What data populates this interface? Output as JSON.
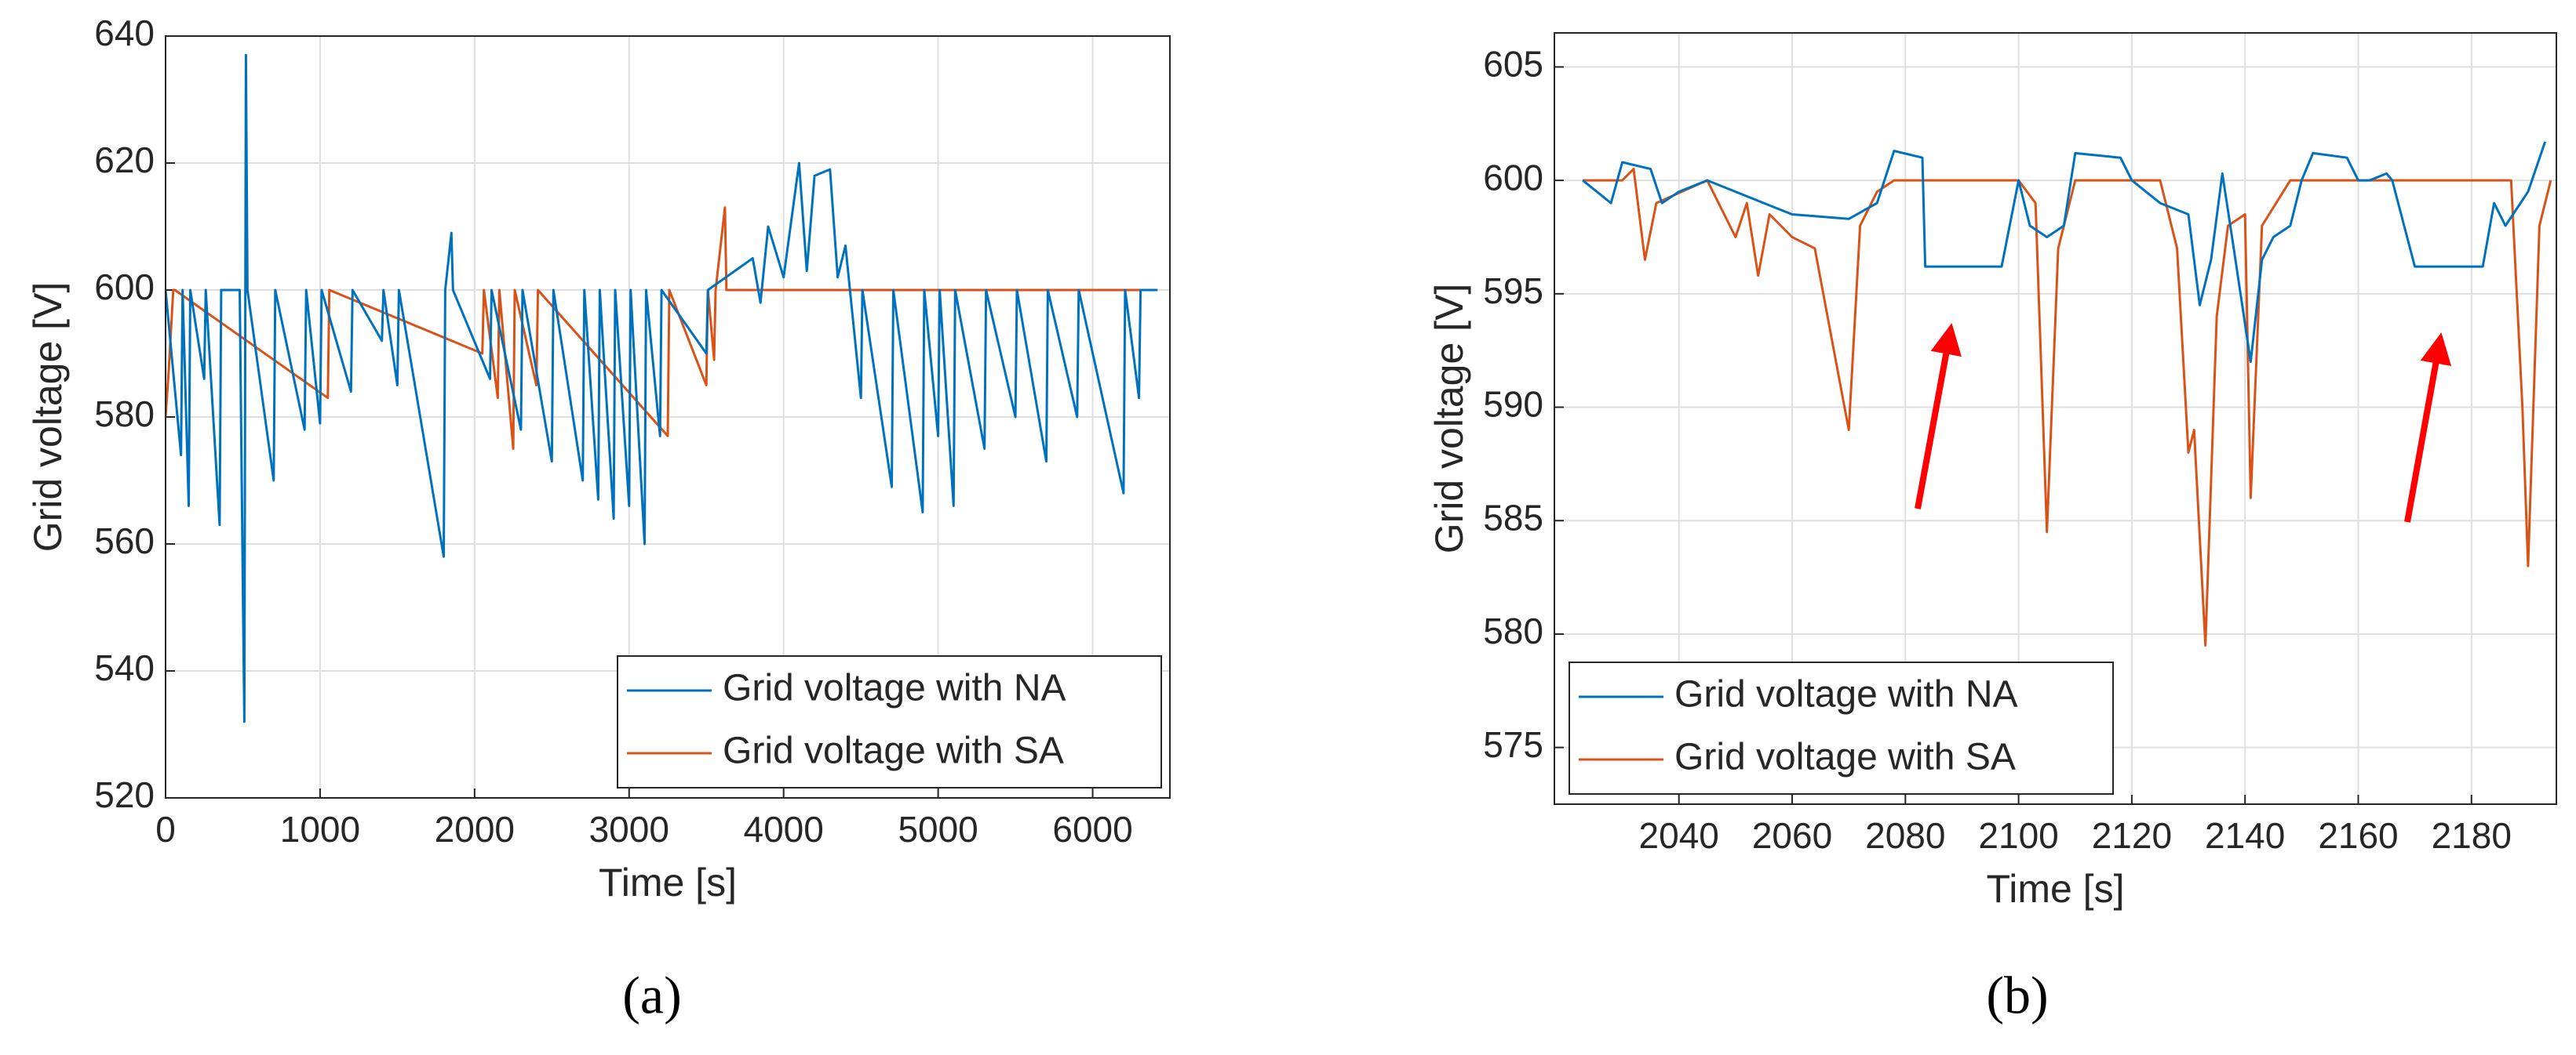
{
  "chart_data": [
    {
      "type": "line",
      "caption": "(a)",
      "xlabel": "Time [s]",
      "ylabel": "Grid voltage [V]",
      "xlim": [
        0,
        6500
      ],
      "ylim": [
        520,
        640
      ],
      "xticks": [
        0,
        1000,
        2000,
        3000,
        4000,
        5000,
        6000
      ],
      "yticks": [
        520,
        540,
        560,
        580,
        600,
        620,
        640
      ],
      "grid": true,
      "legend": "lower right",
      "series": [
        {
          "name": "Grid voltage with NA",
          "color": "#0072bd",
          "x": [
            0,
            100,
            110,
            150,
            160,
            250,
            260,
            350,
            360,
            480,
            500,
            510,
            520,
            530,
            700,
            710,
            900,
            910,
            1000,
            1010,
            1200,
            1210,
            1400,
            1410,
            1500,
            1510,
            1800,
            1810,
            1850,
            1860,
            2100,
            2110,
            2300,
            2310,
            2500,
            2510,
            2700,
            2710,
            2800,
            2810,
            2900,
            2910,
            3000,
            3010,
            3100,
            3110,
            3200,
            3210,
            3500,
            3510,
            3800,
            3850,
            3900,
            4000,
            4100,
            4150,
            4200,
            4300,
            4350,
            4400,
            4500,
            4510,
            4700,
            4710,
            4900,
            4910,
            5000,
            5010,
            5100,
            5110,
            5300,
            5310,
            5500,
            5510,
            5700,
            5710,
            5900,
            5910,
            6200,
            6210,
            6300,
            6310,
            6420
          ],
          "values": [
            600,
            574,
            600,
            566,
            600,
            586,
            600,
            563,
            600,
            600,
            553,
            532,
            637,
            600,
            570,
            600,
            578,
            600,
            579,
            600,
            584,
            600,
            592,
            600,
            585,
            600,
            558,
            600,
            609,
            600,
            586,
            600,
            578,
            600,
            573,
            600,
            570,
            600,
            567,
            600,
            564,
            600,
            566,
            600,
            560,
            600,
            577,
            600,
            590,
            600,
            605,
            598,
            610,
            602,
            620,
            603,
            618,
            619,
            602,
            607,
            583,
            600,
            569,
            600,
            565,
            600,
            577,
            600,
            566,
            600,
            575,
            600,
            580,
            600,
            573,
            600,
            580,
            600,
            568,
            600,
            583,
            600,
            600
          ]
        },
        {
          "name": "Grid voltage with SA",
          "color": "#d95319",
          "x": [
            0,
            20,
            50,
            60,
            1050,
            1060,
            2050,
            2060,
            2150,
            2160,
            2250,
            2260,
            2400,
            2410,
            3250,
            3260,
            3500,
            3510,
            3550,
            3560,
            3620,
            3630,
            6420
          ],
          "values": [
            580,
            587,
            600,
            600,
            583,
            600,
            590,
            600,
            583,
            600,
            575,
            600,
            585,
            600,
            577,
            600,
            585,
            600,
            589,
            600,
            613,
            600,
            600
          ]
        }
      ]
    },
    {
      "type": "line",
      "caption": "(b)",
      "xlabel": "Time [s]",
      "ylabel": "Grid voltage [V]",
      "xlim": [
        2018,
        2195
      ],
      "ylim": [
        572.5,
        606.5
      ],
      "xticks": [
        2040,
        2060,
        2080,
        2100,
        2120,
        2140,
        2160,
        2180
      ],
      "yticks": [
        575,
        580,
        585,
        590,
        595,
        600,
        605
      ],
      "grid": true,
      "legend": "lower left",
      "series": [
        {
          "name": "Grid voltage with NA",
          "color": "#0072bd",
          "x": [
            2023,
            2028,
            2030,
            2035,
            2037,
            2040,
            2045,
            2050,
            2055,
            2060,
            2070,
            2075,
            2078,
            2083,
            2083.5,
            2097,
            2100,
            2102,
            2105,
            2108,
            2110,
            2118,
            2120,
            2125,
            2130,
            2132,
            2134,
            2136,
            2138,
            2141,
            2143,
            2145,
            2148,
            2150,
            2152,
            2158,
            2160,
            2162,
            2165,
            2166,
            2170,
            2182,
            2184,
            2186,
            2190,
            2193
          ],
          "values": [
            600,
            599,
            600.8,
            600.5,
            599,
            599.5,
            600,
            599.5,
            599,
            598.5,
            598.3,
            599,
            601.3,
            601,
            596.2,
            596.2,
            600,
            598,
            597.5,
            598,
            601.2,
            601,
            600,
            599,
            598.5,
            594.5,
            596.5,
            600.3,
            597,
            592,
            596.5,
            597.5,
            598,
            600,
            601.2,
            601,
            600,
            600,
            600.3,
            600,
            596.2,
            596.2,
            599,
            598,
            599.5,
            601.7
          ]
        },
        {
          "name": "Grid voltage with SA",
          "color": "#d95319",
          "x": [
            2023,
            2030,
            2032,
            2034,
            2036,
            2045,
            2050,
            2052,
            2054,
            2056,
            2060,
            2064,
            2067,
            2070,
            2072,
            2075,
            2078,
            2100,
            2103,
            2105,
            2107,
            2110,
            2125,
            2128,
            2130,
            2131,
            2133,
            2135,
            2137,
            2140,
            2141,
            2143,
            2148,
            2187,
            2189,
            2190,
            2192,
            2194
          ],
          "values": [
            600,
            600,
            600.5,
            596.5,
            599,
            600,
            597.5,
            599,
            595.8,
            598.5,
            597.5,
            597,
            593,
            589,
            598,
            599.5,
            600,
            600,
            599,
            584.5,
            597,
            600,
            600,
            597,
            588,
            589,
            579.5,
            594,
            598,
            598.5,
            586,
            598,
            600,
            600,
            590,
            583,
            598,
            600
          ]
        }
      ]
    }
  ]
}
